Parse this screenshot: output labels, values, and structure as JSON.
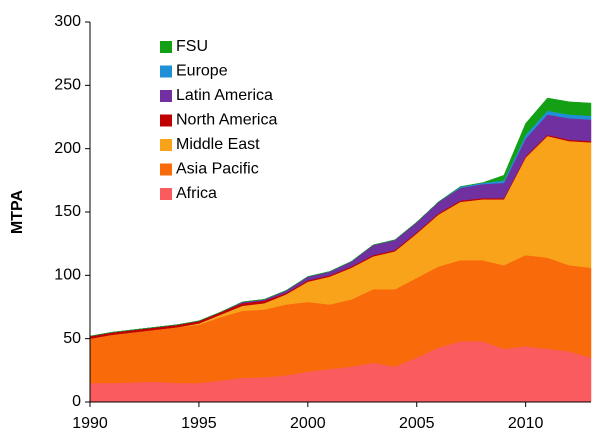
{
  "chart_data": {
    "type": "stacked_area",
    "y_label": "MTPA",
    "x": [
      1990,
      1991,
      1992,
      1993,
      1994,
      1995,
      1996,
      1997,
      1998,
      1999,
      2000,
      2001,
      2002,
      2003,
      2004,
      2005,
      2006,
      2007,
      2008,
      2009,
      2010,
      2011,
      2012,
      2013
    ],
    "series": [
      {
        "name": "Africa",
        "color": "#f95b5f",
        "values": [
          15,
          15,
          15.5,
          16,
          15,
          15,
          17,
          19,
          19.5,
          21,
          24,
          26,
          28,
          31,
          28,
          35,
          43,
          48,
          48,
          42,
          44,
          42,
          40,
          35
        ]
      },
      {
        "name": "Asia Pacific",
        "color": "#f96a0a",
        "values": [
          35,
          38,
          39.5,
          41,
          44,
          46,
          50,
          53,
          53.5,
          56,
          55,
          51,
          53,
          58,
          61,
          63,
          64,
          64,
          64,
          66,
          72,
          72,
          68,
          71
        ]
      },
      {
        "name": "Middle East",
        "color": "#f9a31b",
        "values": [
          0,
          0,
          0,
          0,
          0,
          1,
          2,
          4,
          5,
          8,
          16,
          22,
          25,
          26,
          30,
          35,
          41,
          46,
          48,
          52,
          77,
          96,
          98,
          99
        ]
      },
      {
        "name": "North America",
        "color": "#c00000",
        "values": [
          2,
          2,
          2,
          2,
          2,
          2,
          2,
          2,
          2,
          1,
          1,
          1,
          1,
          1,
          1,
          1,
          1,
          1,
          1,
          1,
          1,
          1,
          1,
          1
        ]
      },
      {
        "name": "Latin America",
        "color": "#7030a0",
        "values": [
          0,
          0,
          0,
          0,
          0,
          0,
          0,
          1,
          1,
          2,
          3,
          3,
          4,
          8,
          8,
          8,
          9,
          10,
          11,
          12,
          14,
          16,
          17,
          17
        ]
      },
      {
        "name": "Europe",
        "color": "#1f8fd6",
        "values": [
          0,
          0,
          0,
          0,
          0,
          0,
          0,
          0,
          0,
          0,
          0,
          0,
          0,
          0,
          0,
          0,
          0,
          1,
          1,
          2,
          3,
          3,
          3,
          3
        ]
      },
      {
        "name": "FSU",
        "color": "#14a014",
        "values": [
          0,
          0,
          0,
          0,
          0,
          0,
          0,
          0,
          0,
          0,
          0,
          0,
          0,
          0,
          0,
          0,
          0,
          0,
          0,
          4,
          9,
          10,
          10,
          10
        ]
      }
    ],
    "xlim": [
      1990,
      2013
    ],
    "xticks": [
      1990,
      1995,
      2000,
      2005,
      2010
    ],
    "ylim": [
      0,
      300
    ],
    "yticks": [
      0,
      50,
      100,
      150,
      200,
      250,
      300
    ],
    "grid": false,
    "legend": "upper left"
  }
}
